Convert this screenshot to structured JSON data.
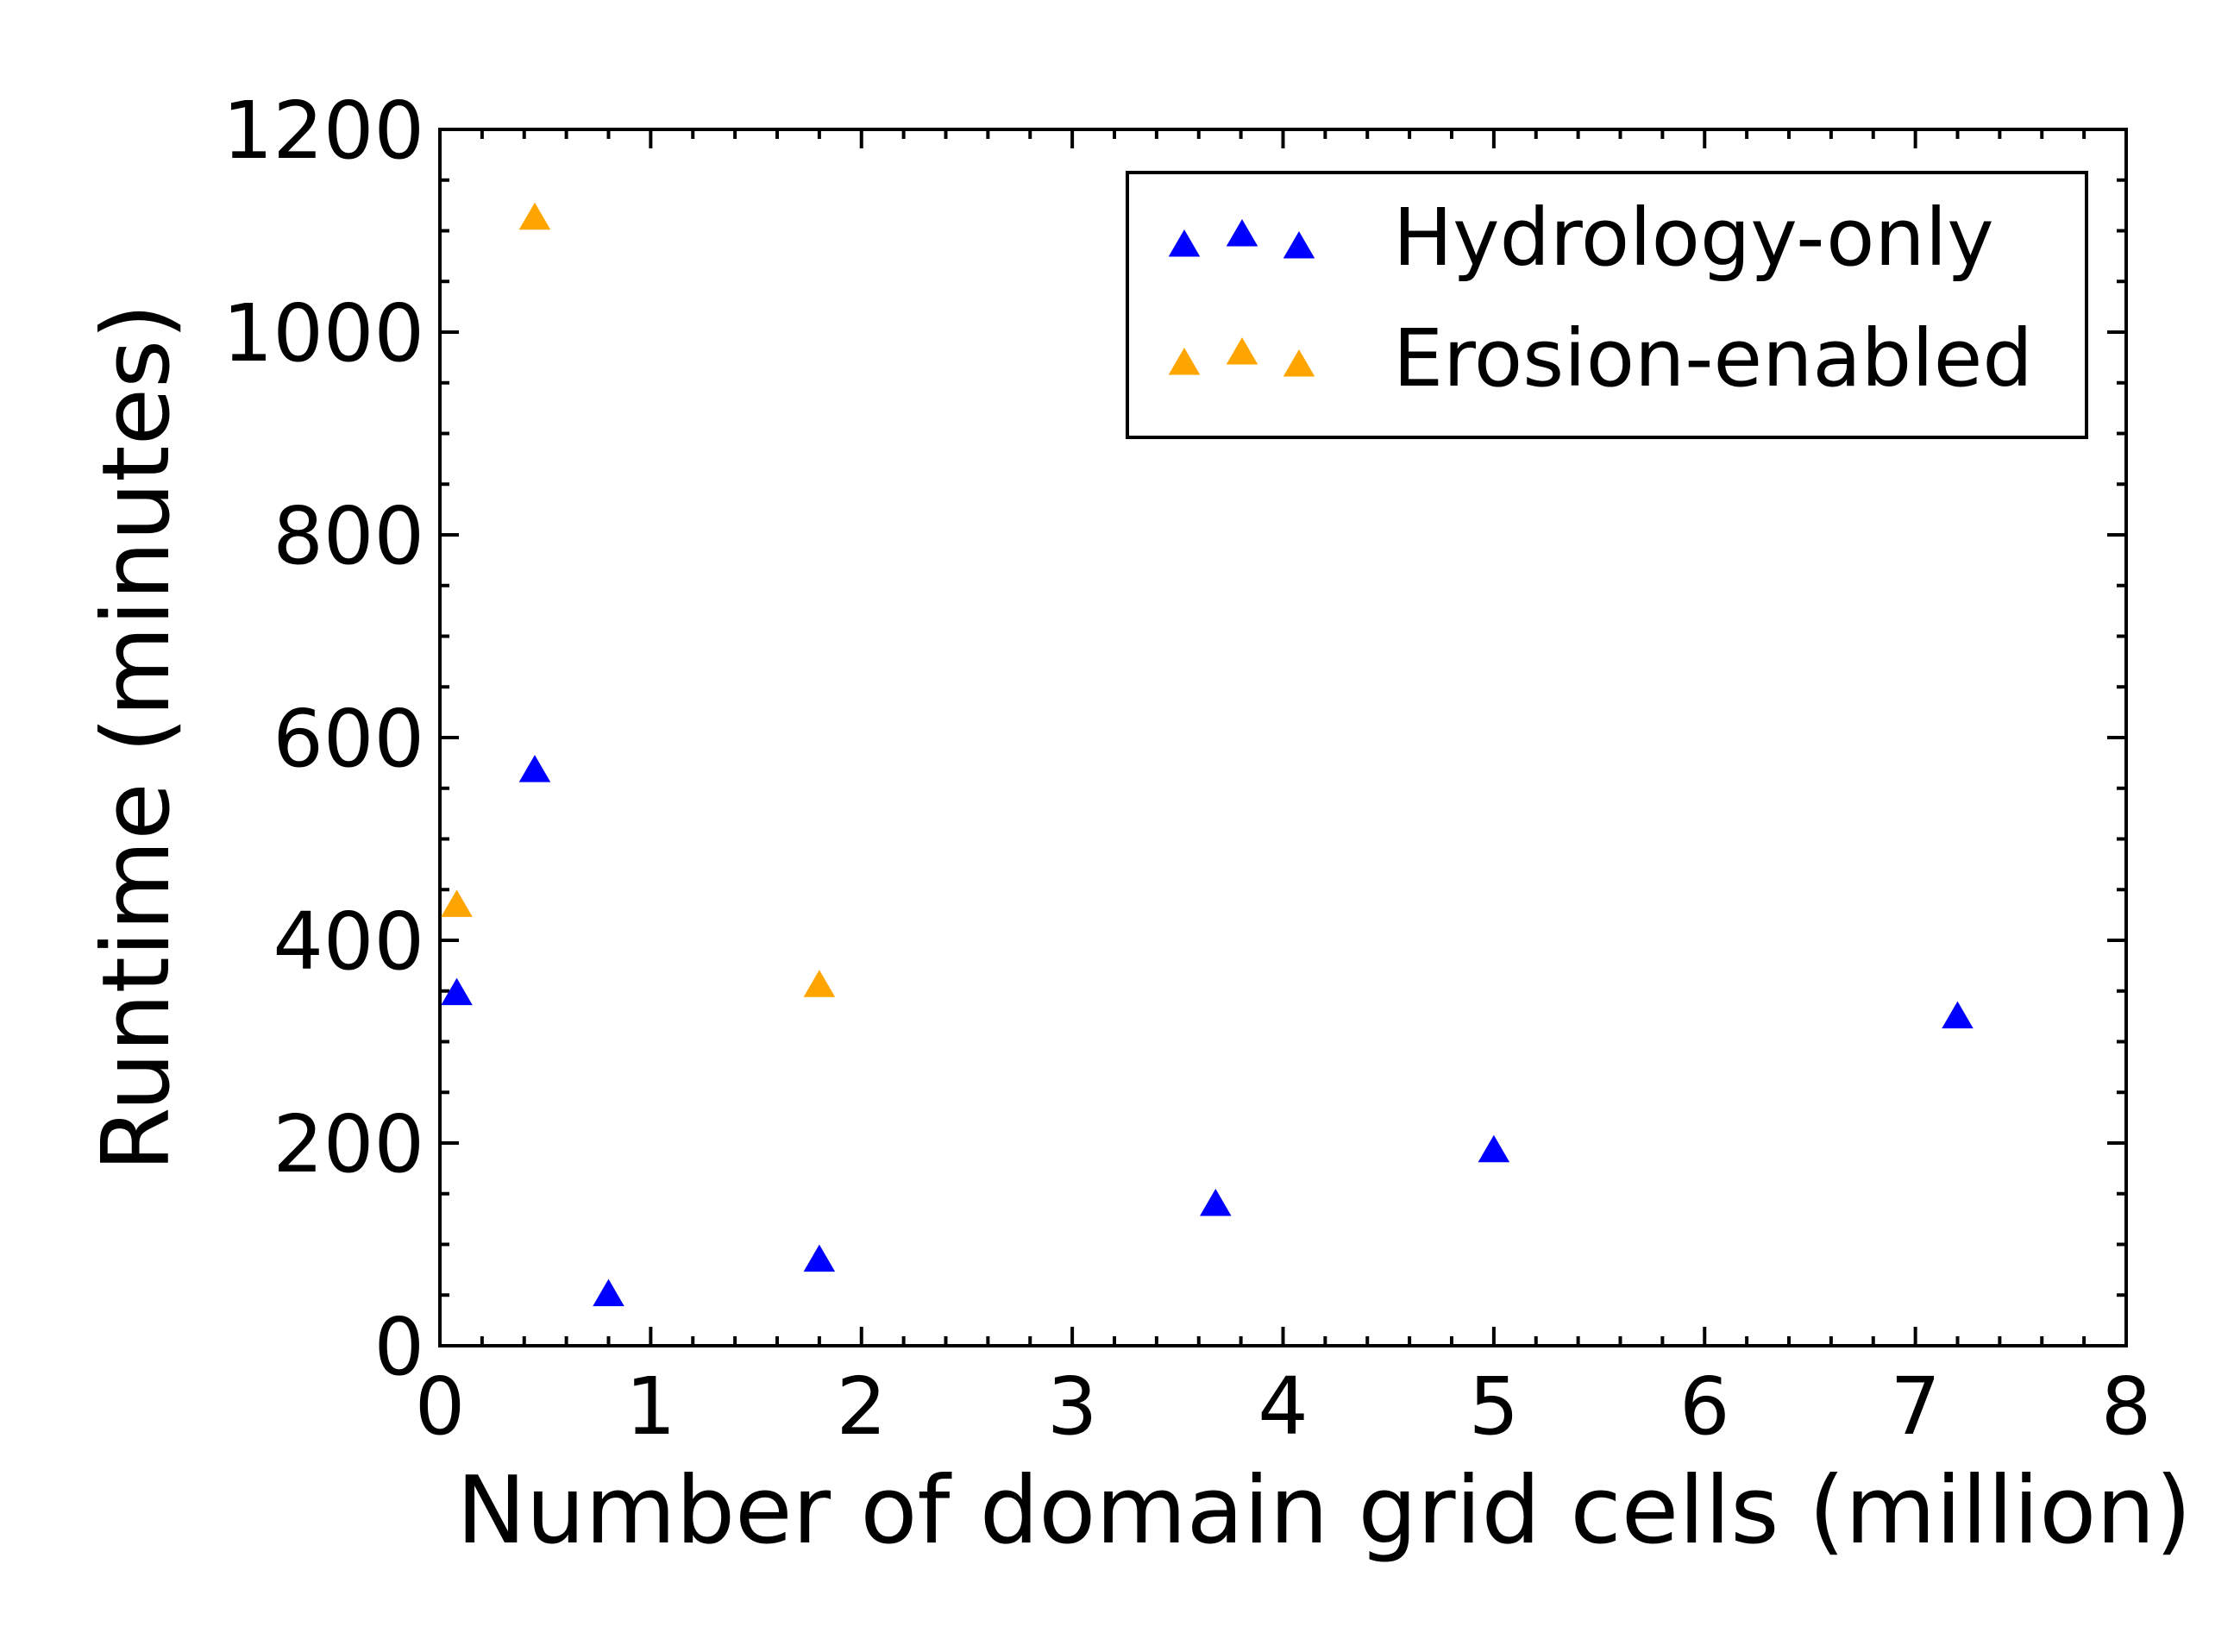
{
  "chart_data": {
    "type": "scatter",
    "title": "",
    "xlabel": "Number of domain grid cells (million)",
    "ylabel": "Runtime (minutes)",
    "xlim": [
      0,
      8
    ],
    "ylim": [
      0,
      1200
    ],
    "x_ticks": [
      0,
      1,
      2,
      3,
      4,
      5,
      6,
      7,
      8
    ],
    "y_ticks": [
      0,
      200,
      400,
      600,
      800,
      1000,
      1200
    ],
    "grid": false,
    "marker": "triangle-up",
    "legend_position": "top-right",
    "series": [
      {
        "name": "Hydrology-only",
        "color": "#0000ff",
        "points": [
          {
            "x": 0.08,
            "y": 345
          },
          {
            "x": 0.45,
            "y": 565
          },
          {
            "x": 0.8,
            "y": 48
          },
          {
            "x": 1.8,
            "y": 82
          },
          {
            "x": 3.68,
            "y": 137
          },
          {
            "x": 5.0,
            "y": 190
          },
          {
            "x": 7.2,
            "y": 322
          }
        ]
      },
      {
        "name": "Erosion-enabled",
        "color": "#ffa500",
        "points": [
          {
            "x": 0.08,
            "y": 432
          },
          {
            "x": 0.45,
            "y": 1110
          },
          {
            "x": 1.8,
            "y": 353
          }
        ]
      }
    ]
  }
}
